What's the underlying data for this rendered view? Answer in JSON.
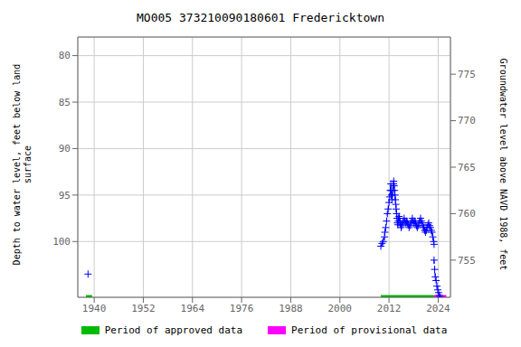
{
  "chart_data": {
    "type": "line",
    "title": "MO005 373210090180601 Fredericktown",
    "y_label": "Depth to water level, feet below land\nsurface",
    "y2_label": "Groundwater level above NAVD 1988, feet",
    "xlim": [
      1936,
      2027
    ],
    "xticks": [
      1940,
      1952,
      1964,
      1976,
      1988,
      2000,
      2012,
      2024
    ],
    "ylim": [
      106,
      78
    ],
    "yticks": [
      80,
      85,
      90,
      95,
      100
    ],
    "y2lim": [
      751,
      779
    ],
    "y2ticks": [
      755,
      760,
      765,
      770,
      775
    ],
    "grid": true,
    "legend": "bottom",
    "series": [
      {
        "color": "#0000ff",
        "line_style": "dashed",
        "marker": "plus",
        "x": [
          2010.0,
          2010.3,
          2010.6,
          2010.9,
          2011.0,
          2011.2,
          2011.4,
          2011.6,
          2011.8,
          2012.0,
          2012.15,
          2012.3,
          2012.45,
          2012.5,
          2012.6,
          2012.7,
          2012.8,
          2012.9,
          2013.0,
          2013.1,
          2013.15,
          2013.25,
          2013.35,
          2013.45,
          2013.55,
          2013.65,
          2013.75,
          2013.85,
          2013.95,
          2014.05,
          2014.15,
          2014.25,
          2014.35,
          2014.45,
          2014.55,
          2014.65,
          2014.75,
          2014.85,
          2014.95,
          2015.1,
          2015.3,
          2015.5,
          2015.7,
          2015.9,
          2016.1,
          2016.3,
          2016.5,
          2016.7,
          2016.9,
          2017.1,
          2017.3,
          2017.5,
          2017.7,
          2017.9,
          2018.1,
          2018.3,
          2018.5,
          2018.7,
          2018.9,
          2019.1,
          2019.3,
          2019.5,
          2019.7,
          2019.9,
          2020.1,
          2020.3,
          2020.5,
          2020.7,
          2020.9,
          2021.1,
          2021.3,
          2021.5,
          2021.7,
          2021.9,
          2022.1,
          2022.3,
          2022.5,
          2022.7,
          2022.9,
          2023.0
        ],
        "values": [
          100.5,
          100.2,
          100.0,
          99.5,
          99.0,
          98.5,
          97.8,
          97.0,
          96.5,
          95.8,
          95.2,
          94.5,
          93.8,
          94.5,
          95.0,
          95.5,
          95.0,
          94.5,
          94.0,
          93.8,
          93.5,
          94.0,
          94.5,
          95.0,
          95.5,
          96.0,
          96.5,
          97.0,
          97.5,
          98.0,
          98.2,
          97.8,
          97.5,
          97.3,
          97.5,
          97.8,
          98.0,
          98.2,
          98.5,
          98.3,
          98.0,
          97.8,
          97.5,
          97.8,
          98.0,
          97.8,
          98.0,
          98.2,
          98.5,
          98.3,
          98.0,
          97.8,
          97.5,
          97.8,
          98.0,
          97.8,
          98.0,
          98.3,
          98.5,
          98.3,
          98.0,
          97.8,
          97.5,
          97.8,
          98.0,
          98.3,
          98.5,
          98.8,
          99.0,
          98.8,
          98.5,
          98.2,
          98.0,
          98.3,
          98.5,
          98.8,
          99.0,
          99.5,
          100.0,
          100.3
        ]
      },
      {
        "color": "#0000ff",
        "line_style": "dashed",
        "marker": "plus",
        "x": [
          2023.0,
          2023.15,
          2023.3,
          2023.5,
          2023.7,
          2023.9,
          2024.1,
          2024.3,
          2024.5
        ],
        "values": [
          102.0,
          103.0,
          103.8,
          104.2,
          104.8,
          105.2,
          105.5,
          105.8,
          106.0
        ]
      },
      {
        "color": "#0000ff",
        "line_style": "none",
        "marker": "plus",
        "x": [
          1938.5
        ],
        "values": [
          103.5
        ]
      }
    ],
    "periods": [
      {
        "name": "Period of approved data",
        "color": "#00bb00",
        "ranges": [
          [
            1938,
            1939.5
          ],
          [
            2010,
            2023
          ]
        ]
      },
      {
        "name": "Period of provisional data",
        "color": "#ff00ff",
        "ranges": [
          [
            2023,
            2026
          ]
        ]
      }
    ]
  }
}
